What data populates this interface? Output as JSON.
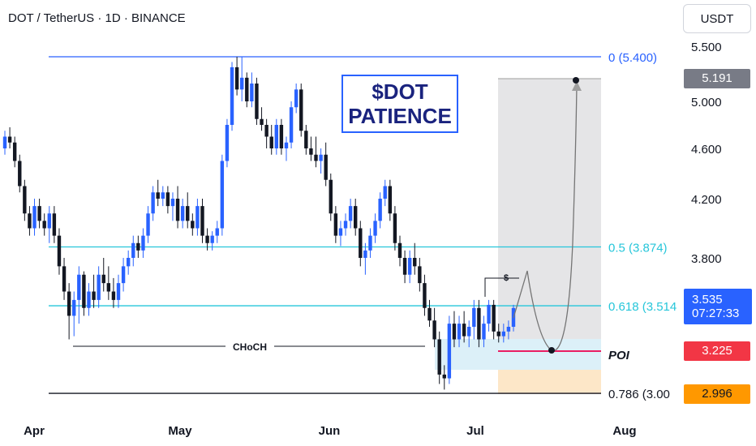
{
  "header": {
    "title": "DOT / TetherUS · 1D · BINANCE"
  },
  "axis_unit": "USDT",
  "annotation": {
    "line1": "$DOT",
    "line2": "PATIENCE"
  },
  "labels": {
    "choch": "CHoCH",
    "poi": "POI",
    "liquidity": "$"
  },
  "fib_levels": [
    {
      "label": "0 (5.400)",
      "value": 5.4,
      "color": "#2962ff"
    },
    {
      "label": "0.5 (3.874)",
      "value": 3.874,
      "color": "#26c6da"
    },
    {
      "label": "0.618 (3.514",
      "value": 3.514,
      "color": "#26c6da"
    },
    {
      "label": "0.786 (3.00",
      "value": 3.0,
      "color": "#131722"
    }
  ],
  "price_badges": {
    "target": {
      "text": "5.191",
      "value": 5.191,
      "color": "#787b86"
    },
    "current_price": "3.535",
    "countdown": "07:27:33",
    "current_value": 3.535,
    "poi": {
      "text": "3.225",
      "value": 3.225,
      "color": "#f23645"
    },
    "stop": {
      "text": "2.996",
      "value": 2.996,
      "color": "#ff9800"
    }
  },
  "colors": {
    "up": "#2962ff",
    "down": "#131722",
    "grid_text": "#131722"
  },
  "chart_data": {
    "type": "candlestick",
    "title": "DOT / TetherUS · 1D · BINANCE",
    "y_ticks": [
      3.8,
      4.2,
      4.6,
      5.0,
      5.5
    ],
    "ylim": [
      2.95,
      5.55
    ],
    "x_ticks": [
      "Apr",
      "May",
      "Jun",
      "Jul",
      "Aug"
    ],
    "ohlc": [
      [
        4.6,
        4.75,
        4.55,
        4.7
      ],
      [
        4.7,
        4.78,
        4.6,
        4.65
      ],
      [
        4.65,
        4.7,
        4.45,
        4.5
      ],
      [
        4.5,
        4.55,
        4.25,
        4.3
      ],
      [
        4.3,
        4.35,
        4.05,
        4.1
      ],
      [
        4.1,
        4.15,
        3.95,
        4.0
      ],
      [
        4.0,
        4.2,
        3.95,
        4.15
      ],
      [
        4.15,
        4.2,
        4.0,
        4.05
      ],
      [
        4.05,
        4.1,
        3.95,
        4.0
      ],
      [
        4.0,
        4.15,
        3.9,
        4.1
      ],
      [
        4.1,
        4.15,
        3.9,
        3.95
      ],
      [
        3.95,
        4.0,
        3.7,
        3.75
      ],
      [
        3.75,
        3.8,
        3.55,
        3.6
      ],
      [
        3.6,
        3.65,
        3.3,
        3.45
      ],
      [
        3.45,
        3.6,
        3.32,
        3.55
      ],
      [
        3.55,
        3.75,
        3.4,
        3.7
      ],
      [
        3.7,
        3.72,
        3.45,
        3.5
      ],
      [
        3.5,
        3.65,
        3.45,
        3.6
      ],
      [
        3.6,
        3.7,
        3.5,
        3.55
      ],
      [
        3.55,
        3.75,
        3.5,
        3.7
      ],
      [
        3.7,
        3.8,
        3.6,
        3.65
      ],
      [
        3.65,
        3.75,
        3.55,
        3.6
      ],
      [
        3.6,
        3.68,
        3.5,
        3.55
      ],
      [
        3.55,
        3.7,
        3.5,
        3.65
      ],
      [
        3.65,
        3.8,
        3.6,
        3.75
      ],
      [
        3.75,
        3.85,
        3.7,
        3.8
      ],
      [
        3.8,
        3.95,
        3.75,
        3.9
      ],
      [
        3.9,
        3.95,
        3.8,
        3.85
      ],
      [
        3.85,
        4.0,
        3.8,
        3.95
      ],
      [
        3.95,
        4.15,
        3.9,
        4.1
      ],
      [
        4.1,
        4.3,
        4.05,
        4.25
      ],
      [
        4.25,
        4.35,
        4.15,
        4.2
      ],
      [
        4.2,
        4.3,
        4.15,
        4.25
      ],
      [
        4.25,
        4.3,
        4.1,
        4.15
      ],
      [
        4.15,
        4.25,
        4.05,
        4.2
      ],
      [
        4.2,
        4.3,
        4.0,
        4.05
      ],
      [
        4.05,
        4.2,
        4.0,
        4.15
      ],
      [
        4.15,
        4.25,
        4.0,
        4.05
      ],
      [
        4.05,
        4.1,
        3.95,
        4.0
      ],
      [
        4.0,
        4.2,
        3.95,
        4.15
      ],
      [
        4.15,
        4.2,
        3.9,
        3.95
      ],
      [
        3.95,
        4.0,
        3.85,
        3.9
      ],
      [
        3.9,
        3.98,
        3.85,
        3.95
      ],
      [
        3.95,
        4.05,
        3.9,
        4.0
      ],
      [
        4.0,
        4.55,
        3.95,
        4.5
      ],
      [
        4.5,
        4.85,
        4.45,
        4.8
      ],
      [
        4.8,
        5.35,
        4.75,
        5.3
      ],
      [
        5.3,
        5.4,
        5.05,
        5.1
      ],
      [
        5.1,
        5.4,
        5.0,
        5.2
      ],
      [
        5.2,
        5.25,
        4.95,
        5.0
      ],
      [
        5.0,
        5.25,
        4.95,
        5.15
      ],
      [
        5.15,
        5.2,
        4.8,
        4.85
      ],
      [
        4.85,
        4.95,
        4.75,
        4.8
      ],
      [
        4.8,
        4.85,
        4.6,
        4.7
      ],
      [
        4.7,
        4.8,
        4.55,
        4.6
      ],
      [
        4.6,
        4.85,
        4.55,
        4.8
      ],
      [
        4.8,
        4.85,
        4.55,
        4.6
      ],
      [
        4.6,
        4.7,
        4.5,
        4.65
      ],
      [
        4.65,
        5.0,
        4.6,
        4.95
      ],
      [
        4.95,
        5.15,
        4.9,
        5.1
      ],
      [
        5.1,
        5.15,
        4.7,
        4.75
      ],
      [
        4.75,
        4.8,
        4.55,
        4.6
      ],
      [
        4.6,
        4.7,
        4.5,
        4.55
      ],
      [
        4.55,
        4.7,
        4.45,
        4.5
      ],
      [
        4.5,
        4.6,
        4.4,
        4.55
      ],
      [
        4.55,
        4.65,
        4.3,
        4.35
      ],
      [
        4.35,
        4.4,
        4.05,
        4.1
      ],
      [
        4.1,
        4.15,
        3.9,
        3.95
      ],
      [
        3.95,
        4.05,
        3.88,
        4.0
      ],
      [
        4.0,
        4.1,
        3.95,
        4.05
      ],
      [
        4.05,
        4.2,
        4.0,
        4.15
      ],
      [
        4.15,
        4.2,
        3.95,
        4.0
      ],
      [
        4.0,
        4.05,
        3.75,
        3.8
      ],
      [
        3.8,
        3.9,
        3.7,
        3.85
      ],
      [
        3.85,
        4.0,
        3.8,
        3.95
      ],
      [
        3.95,
        4.1,
        3.9,
        4.05
      ],
      [
        4.05,
        4.25,
        4.0,
        4.2
      ],
      [
        4.2,
        4.35,
        4.15,
        4.3
      ],
      [
        4.3,
        4.35,
        4.05,
        4.1
      ],
      [
        4.1,
        4.15,
        3.85,
        3.9
      ],
      [
        3.9,
        3.95,
        3.75,
        3.8
      ],
      [
        3.8,
        3.85,
        3.65,
        3.7
      ],
      [
        3.7,
        3.85,
        3.65,
        3.8
      ],
      [
        3.8,
        3.9,
        3.7,
        3.75
      ],
      [
        3.75,
        3.8,
        3.6,
        3.65
      ],
      [
        3.65,
        3.7,
        3.45,
        3.5
      ],
      [
        3.5,
        3.55,
        3.38,
        3.42
      ],
      [
        3.42,
        3.5,
        3.25,
        3.3
      ],
      [
        3.3,
        3.35,
        3.05,
        3.1
      ],
      [
        3.1,
        3.15,
        3.02,
        3.08
      ],
      [
        3.08,
        3.45,
        3.05,
        3.4
      ],
      [
        3.4,
        3.48,
        3.25,
        3.3
      ],
      [
        3.3,
        3.45,
        3.25,
        3.4
      ],
      [
        3.4,
        3.48,
        3.28,
        3.32
      ],
      [
        3.32,
        3.42,
        3.25,
        3.38
      ],
      [
        3.38,
        3.55,
        3.3,
        3.5
      ],
      [
        3.5,
        3.55,
        3.25,
        3.3
      ],
      [
        3.3,
        3.45,
        3.25,
        3.4
      ],
      [
        3.4,
        3.55,
        3.35,
        3.52
      ],
      [
        3.52,
        3.55,
        3.3,
        3.35
      ],
      [
        3.35,
        3.4,
        3.28,
        3.32
      ],
      [
        3.32,
        3.4,
        3.28,
        3.35
      ],
      [
        3.35,
        3.42,
        3.3,
        3.38
      ],
      [
        3.38,
        3.52,
        3.35,
        3.5
      ]
    ]
  }
}
